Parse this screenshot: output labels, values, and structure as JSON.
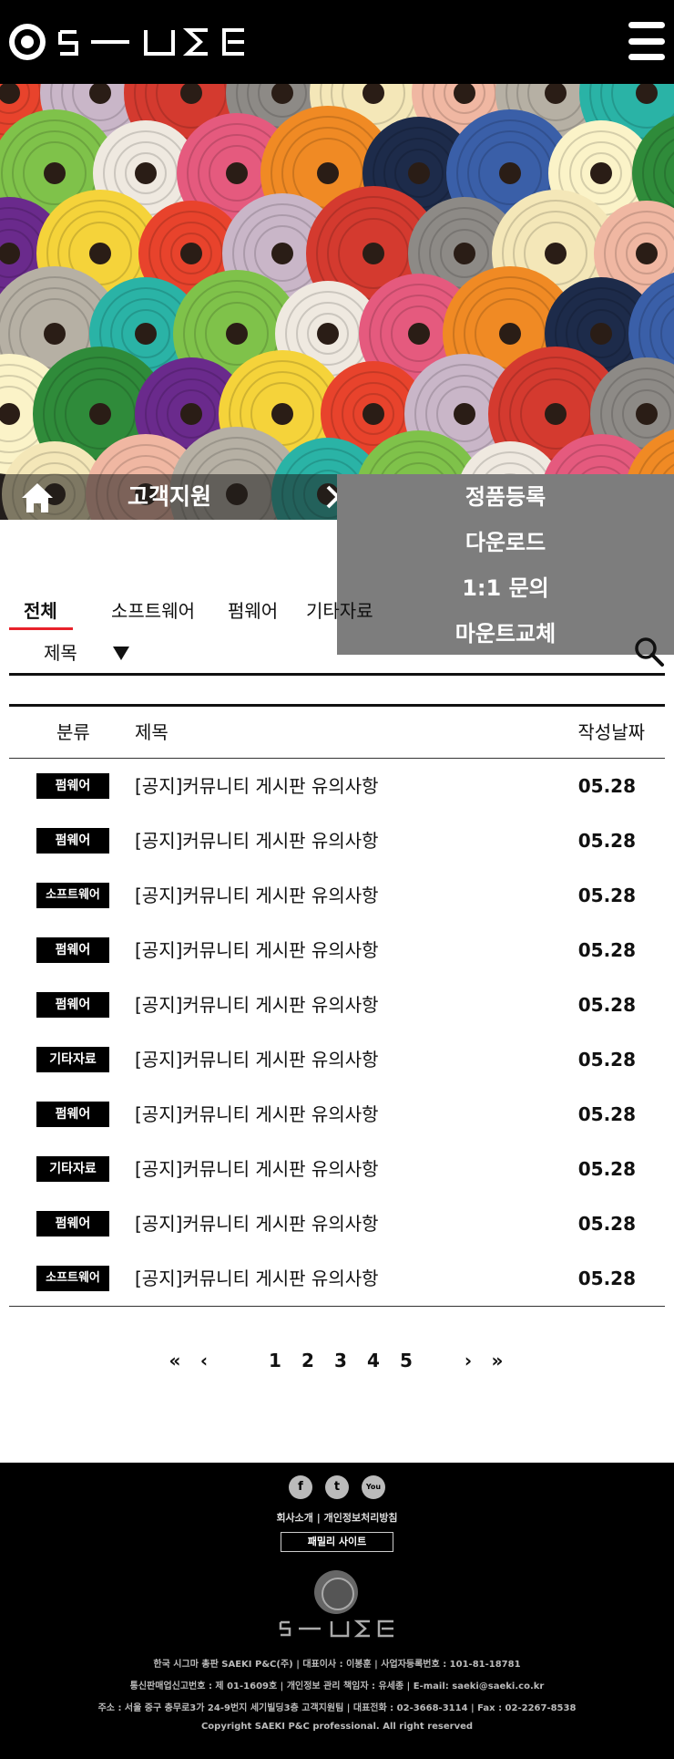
{
  "header": {
    "logo_alt": "SIGMA",
    "menu_icon": "hamburger-icon"
  },
  "breadcrumb": {
    "home_icon": "home-icon",
    "current": "고객지원",
    "arrow_icon": "chevron-right-icon"
  },
  "dropdown": {
    "items": [
      "정품등록",
      "다운로드",
      "1:1 문의",
      "마운트교체"
    ]
  },
  "tabs": {
    "items": [
      "전체",
      "소프트웨어",
      "펌웨어",
      "기타자료"
    ],
    "active": "전체"
  },
  "search": {
    "field_label": "제목",
    "caret_icon": "caret-down-icon",
    "search_icon": "search-icon"
  },
  "table": {
    "headers": {
      "category": "분류",
      "title": "제목",
      "date": "작성날짜"
    },
    "rows": [
      {
        "category": "펌웨어",
        "title": "[공지]커뮤니티 게시판 유의사항",
        "date": "05.28"
      },
      {
        "category": "펌웨어",
        "title": "[공지]커뮤니티 게시판 유의사항",
        "date": "05.28"
      },
      {
        "category": "소프트웨어",
        "title": "[공지]커뮤니티 게시판 유의사항",
        "date": "05.28"
      },
      {
        "category": "펌웨어",
        "title": "[공지]커뮤니티 게시판 유의사항",
        "date": "05.28"
      },
      {
        "category": "펌웨어",
        "title": "[공지]커뮤니티 게시판 유의사항",
        "date": "05.28"
      },
      {
        "category": "기타자료",
        "title": "[공지]커뮤니티 게시판 유의사항",
        "date": "05.28"
      },
      {
        "category": "펌웨어",
        "title": "[공지]커뮤니티 게시판 유의사항",
        "date": "05.28"
      },
      {
        "category": "기타자료",
        "title": "[공지]커뮤니티 게시판 유의사항",
        "date": "05.28"
      },
      {
        "category": "펌웨어",
        "title": "[공지]커뮤니티 게시판 유의사항",
        "date": "05.28"
      },
      {
        "category": "소프트웨어",
        "title": "[공지]커뮤니티 게시판 유의사항",
        "date": "05.28"
      }
    ]
  },
  "pagination": {
    "first": "«",
    "prev": "‹",
    "pages": [
      "1",
      "2",
      "3",
      "4",
      "5"
    ],
    "next": "›",
    "last": "»"
  },
  "footer": {
    "social_icons": [
      "facebook-icon",
      "twitter-icon",
      "youtube-icon"
    ],
    "social_glyphs": [
      "f",
      "t",
      "You"
    ],
    "links": "회사소개 | 개인정보처리방침",
    "family_site": "패밀리 사이트",
    "info_lines": [
      "한국 시그마 총판 SAEKI P&C(주) | 대표이사 : 이봉훈 | 사업자등록번호 : 101-81-18781",
      "통신판매업신고번호 : 제 01-1609호 | 개인정보 관리 책임자 : 유세종 | E-mail: saeki@saeki.co.kr",
      "주소 : 서울 중구 충무로3가 24-9번지 세기빌딩3층 고객지원팀 | 대표전화 : 02-3668-3114 | Fax : 02-2267-8538",
      "Copyright SAEKI P&C professional. All right reserved"
    ]
  },
  "colors": {
    "accent": "#e8222b",
    "dropdown_bg": "#7d7d7d",
    "header_bg": "#000000"
  }
}
